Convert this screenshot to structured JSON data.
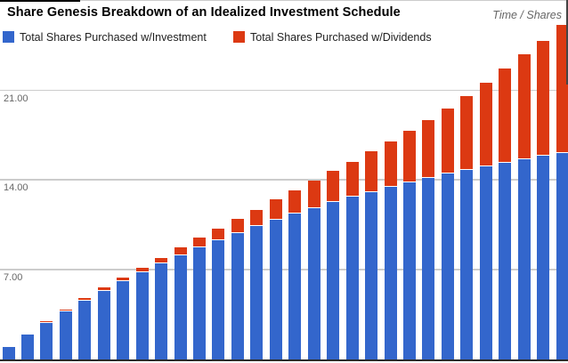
{
  "chart": {
    "title": "Share Genesis Breakdown of an Idealized Investment Schedule",
    "corner_label": "Time / Shares"
  },
  "y_axis": {
    "tick_labels": [
      "7.00",
      "14.00",
      "21.00"
    ]
  },
  "chart_data": {
    "type": "bar",
    "subtype": "stacked-column",
    "title": "Share Genesis Breakdown of an Idealized Investment Schedule",
    "right_axis_title": "Time / Shares",
    "xlabel": "",
    "ylabel": "",
    "x_description": "30 sequential investment periods (no x-axis tick labels shown)",
    "n_bars": 30,
    "ylim": [
      0,
      28
    ],
    "yticks": [
      7,
      14,
      21
    ],
    "ytick_labels": [
      "7.00",
      "14.00",
      "21.00"
    ],
    "grid": true,
    "gridlines_at": [
      7,
      14,
      21,
      28
    ],
    "legend_position": "top-left",
    "series": [
      {
        "name": "Total Shares Purchased w/Investment",
        "color": "#3366CC",
        "values": [
          1.0,
          1.95,
          2.86,
          3.72,
          4.55,
          5.33,
          6.08,
          6.79,
          7.47,
          8.11,
          8.72,
          9.31,
          9.86,
          10.39,
          10.9,
          11.38,
          11.84,
          12.27,
          12.69,
          13.08,
          13.46,
          13.82,
          14.16,
          14.49,
          14.8,
          15.09,
          15.37,
          15.64,
          15.89,
          16.13
        ]
      },
      {
        "name": "Total Shares Purchased w/Dividends",
        "color": "#DC3912",
        "values": [
          0.0,
          0.01,
          0.05,
          0.11,
          0.16,
          0.2,
          0.22,
          0.28,
          0.41,
          0.55,
          0.72,
          0.86,
          1.02,
          1.22,
          1.5,
          1.75,
          2.05,
          2.35,
          2.67,
          3.09,
          3.51,
          3.98,
          4.46,
          5.01,
          5.66,
          6.43,
          7.26,
          8.09,
          8.87,
          9.9
        ]
      }
    ],
    "totals": [
      1.0,
      1.96,
      2.91,
      3.83,
      4.71,
      5.53,
      6.3,
      7.07,
      7.88,
      8.66,
      9.44,
      10.17,
      10.88,
      11.61,
      12.4,
      13.13,
      13.89,
      14.62,
      15.36,
      16.17,
      16.97,
      17.8,
      18.62,
      19.5,
      20.46,
      21.52,
      22.63,
      23.73,
      24.76,
      26.03
    ]
  },
  "style": {
    "grid_color": "#cccccc",
    "axis_color": "#2b2b2b",
    "tick_label_color": "#666666",
    "title_color": "#000000",
    "background": "#ffffff"
  }
}
